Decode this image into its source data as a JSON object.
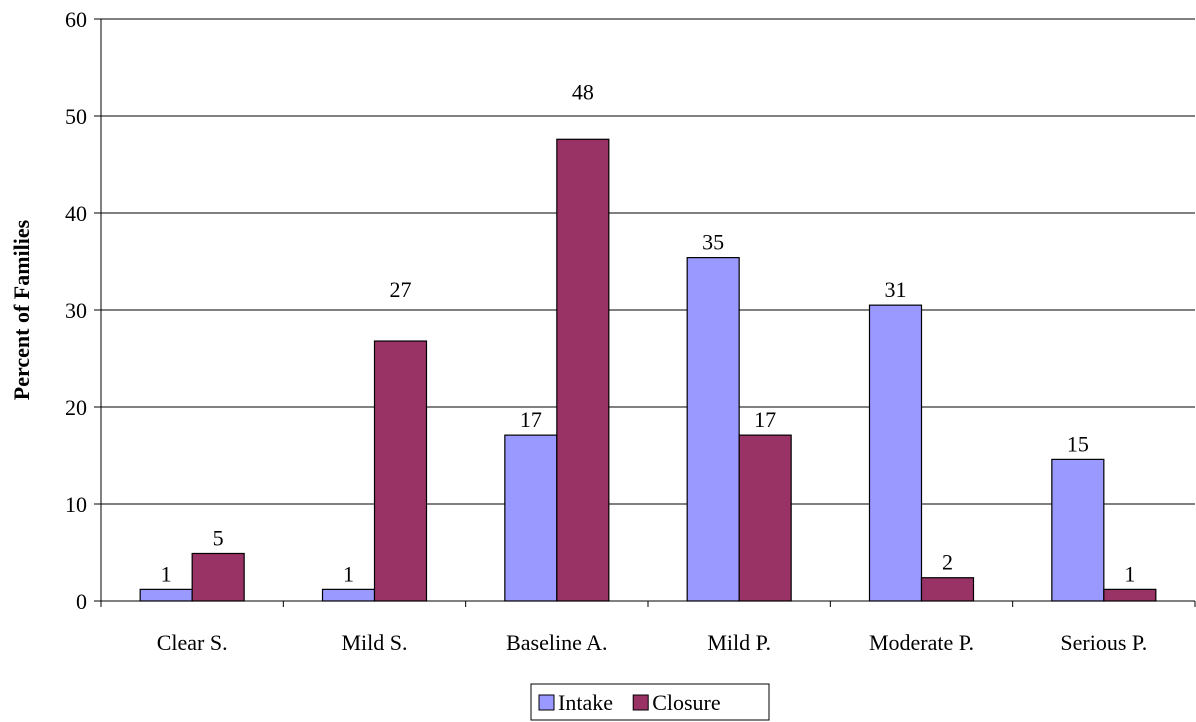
{
  "chart_data": {
    "type": "bar",
    "title": "",
    "xlabel": "",
    "ylabel": "Percent of Families",
    "ylim": [
      0,
      60
    ],
    "yticks": [
      0,
      10,
      20,
      30,
      40,
      50,
      60
    ],
    "grid": true,
    "legend_position": "bottom-center",
    "categories": [
      "Clear S.",
      "Mild S.",
      "Baseline A.",
      "Mild P.",
      "Moderate P.",
      "Serious P."
    ],
    "series": [
      {
        "name": "Intake",
        "color": "#9999ff",
        "values": [
          1.2,
          1.2,
          17.1,
          35.4,
          30.5,
          14.6
        ],
        "labels": [
          "1",
          "1",
          "17",
          "35",
          "31",
          "15"
        ]
      },
      {
        "name": "Closure",
        "color": "#993366",
        "values": [
          4.9,
          26.8,
          47.6,
          17.1,
          2.4,
          1.2
        ],
        "labels": [
          "5",
          "27",
          "48",
          "17",
          "2",
          "1"
        ]
      }
    ]
  }
}
